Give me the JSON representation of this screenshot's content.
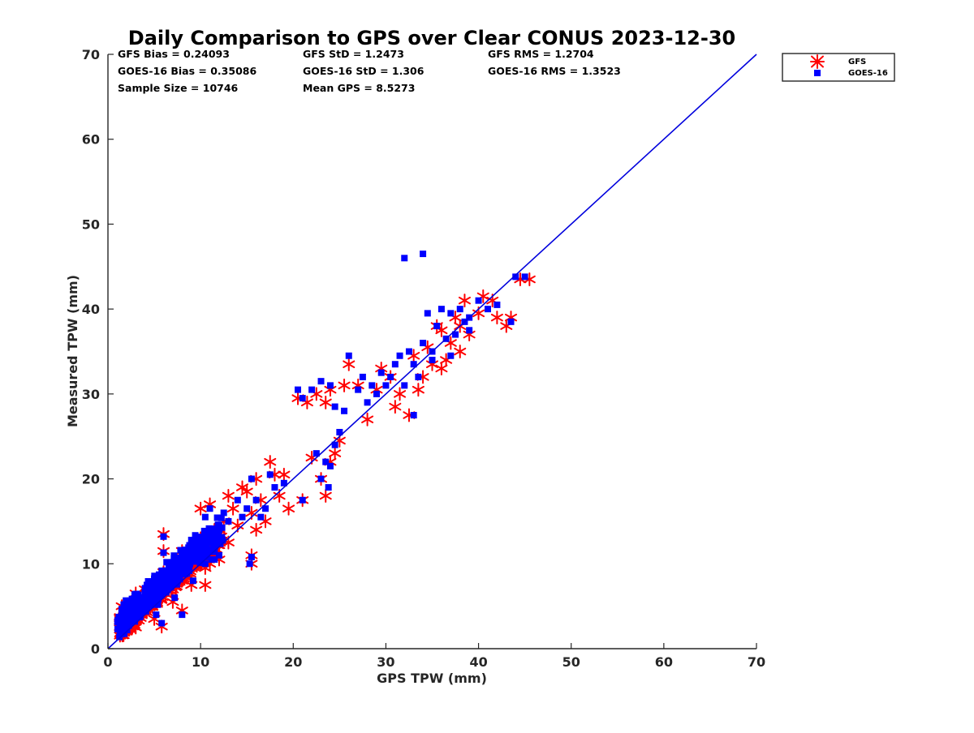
{
  "chart_data": {
    "type": "scatter",
    "title": "Daily Comparison to GPS over Clear CONUS 2023-12-30",
    "xlabel": "GPS TPW (mm)",
    "ylabel": "Measured TPW (mm)",
    "xlim": [
      0,
      70
    ],
    "ylim": [
      0,
      70
    ],
    "xticks": [
      "0",
      "10",
      "20",
      "30",
      "40",
      "50",
      "60",
      "70"
    ],
    "yticks": [
      "0",
      "10",
      "20",
      "30",
      "40",
      "50",
      "60",
      "70"
    ],
    "grid": false,
    "legend": {
      "location": "outside top-right",
      "entries": [
        "GFS",
        "GOES-16"
      ]
    },
    "colors": {
      "GFS": "#ff0000",
      "GOES-16": "#0000ff",
      "reference_line": "#0000dd",
      "axes": "#262626"
    },
    "reference_line": {
      "name": "1:1 line",
      "x": [
        0,
        70
      ],
      "y": [
        0,
        70
      ]
    },
    "stats": {
      "gfs_bias": "GFS Bias = 0.24093",
      "goes_bias": "GOES-16 Bias = 0.35086",
      "sample_size": "Sample Size = 10746",
      "gfs_std": "GFS StD = 1.2473",
      "goes_std": "GOES-16 StD = 1.306",
      "mean_gps": "Mean GPS = 8.5273",
      "gfs_rms": "GFS RMS = 1.2704",
      "goes_rms": "GOES-16 RMS = 1.3523"
    },
    "series": [
      {
        "name": "GFS",
        "marker": "asterisk",
        "points": [
          [
            1.5,
            2.5
          ],
          [
            2,
            3.5
          ],
          [
            2.5,
            3
          ],
          [
            3,
            4.5
          ],
          [
            3.5,
            4
          ],
          [
            4,
            5.5
          ],
          [
            4.5,
            5
          ],
          [
            5,
            6
          ],
          [
            5.5,
            6.5
          ],
          [
            6,
            7
          ],
          [
            6.5,
            7.5
          ],
          [
            7,
            8
          ],
          [
            7.5,
            8.5
          ],
          [
            8,
            9
          ],
          [
            8.5,
            9.5
          ],
          [
            9,
            10
          ],
          [
            9.5,
            10.5
          ],
          [
            10,
            11
          ],
          [
            10.5,
            9.5
          ],
          [
            11,
            12
          ],
          [
            11.5,
            11
          ],
          [
            12,
            10.5
          ],
          [
            1.5,
            5
          ],
          [
            2,
            2
          ],
          [
            3,
            6.5
          ],
          [
            3,
            2.5
          ],
          [
            4,
            7
          ],
          [
            5,
            3.5
          ],
          [
            6,
            9
          ],
          [
            7,
            5.5
          ],
          [
            8,
            11.5
          ],
          [
            9,
            7.5
          ],
          [
            10,
            13
          ],
          [
            10.5,
            7.5
          ],
          [
            11,
            10
          ],
          [
            12,
            12.5
          ],
          [
            6,
            13.5
          ],
          [
            6,
            11.5
          ],
          [
            5.8,
            2.6
          ],
          [
            8,
            4.5
          ],
          [
            10,
            16.5
          ],
          [
            11,
            17
          ],
          [
            11.5,
            14
          ],
          [
            12.5,
            15
          ],
          [
            13,
            18
          ],
          [
            13.5,
            16.5
          ],
          [
            14,
            14.5
          ],
          [
            14.5,
            19
          ],
          [
            15,
            18.5
          ],
          [
            15.5,
            16
          ],
          [
            16,
            14
          ],
          [
            16,
            20
          ],
          [
            16.5,
            17.5
          ],
          [
            17,
            15
          ],
          [
            17.5,
            22
          ],
          [
            18,
            20.5
          ],
          [
            18.5,
            18
          ],
          [
            19,
            20.5
          ],
          [
            19.5,
            16.5
          ],
          [
            15.5,
            11
          ],
          [
            15.5,
            10
          ],
          [
            12,
            14
          ],
          [
            13,
            12.5
          ],
          [
            20.5,
            29.5
          ],
          [
            21.5,
            29
          ],
          [
            22.5,
            30
          ],
          [
            22,
            22.5
          ],
          [
            23,
            20
          ],
          [
            23.5,
            18
          ],
          [
            24,
            22
          ],
          [
            24.5,
            23
          ],
          [
            25,
            24.5
          ],
          [
            21,
            17.5
          ],
          [
            23.5,
            29
          ],
          [
            24,
            30.5
          ],
          [
            25.5,
            31
          ],
          [
            26,
            33.5
          ],
          [
            27,
            31
          ],
          [
            28,
            27
          ],
          [
            29,
            30.5
          ],
          [
            29.5,
            33
          ],
          [
            30.5,
            32
          ],
          [
            31,
            28.5
          ],
          [
            31.5,
            30
          ],
          [
            32.5,
            27.5
          ],
          [
            33,
            34.5
          ],
          [
            33.5,
            30.5
          ],
          [
            34,
            32
          ],
          [
            35,
            33.5
          ],
          [
            34.5,
            35.5
          ],
          [
            36,
            33
          ],
          [
            36,
            37.5
          ],
          [
            37,
            36
          ],
          [
            37.5,
            39
          ],
          [
            38,
            38
          ],
          [
            38.5,
            41
          ],
          [
            39,
            37
          ],
          [
            40,
            39.5
          ],
          [
            40.5,
            41.5
          ],
          [
            41.5,
            41
          ],
          [
            42,
            39
          ],
          [
            43,
            38
          ],
          [
            43.5,
            39
          ],
          [
            44.5,
            43.5
          ],
          [
            45.5,
            43.5
          ],
          [
            35.5,
            38
          ],
          [
            38,
            35
          ],
          [
            36.5,
            34
          ]
        ]
      },
      {
        "name": "GOES-16",
        "marker": "square",
        "points": [
          [
            1.5,
            3
          ],
          [
            2,
            4
          ],
          [
            2.5,
            3.5
          ],
          [
            3,
            5
          ],
          [
            3.5,
            4.5
          ],
          [
            4,
            6
          ],
          [
            4.5,
            5.5
          ],
          [
            5,
            6.5
          ],
          [
            5.5,
            7
          ],
          [
            6,
            7.5
          ],
          [
            6.5,
            8
          ],
          [
            7,
            8.5
          ],
          [
            7.5,
            9
          ],
          [
            8,
            9.5
          ],
          [
            8.5,
            10
          ],
          [
            9,
            10.5
          ],
          [
            9.5,
            11
          ],
          [
            10,
            11.5
          ],
          [
            10.5,
            10
          ],
          [
            11,
            12.5
          ],
          [
            11.5,
            10.5
          ],
          [
            12,
            11
          ],
          [
            1.7,
            5.2
          ],
          [
            2.2,
            2.8
          ],
          [
            3.2,
            6
          ],
          [
            4.2,
            7.5
          ],
          [
            5.2,
            4
          ],
          [
            6.2,
            9.2
          ],
          [
            7.2,
            6
          ],
          [
            8.2,
            11
          ],
          [
            9.2,
            8
          ],
          [
            10.2,
            12.5
          ],
          [
            11.2,
            10.5
          ],
          [
            6,
            13.2
          ],
          [
            6,
            11.3
          ],
          [
            5.8,
            3
          ],
          [
            8,
            4
          ],
          [
            9,
            12.8
          ],
          [
            10.5,
            15.5
          ],
          [
            11,
            16.5
          ],
          [
            12,
            14.5
          ],
          [
            12.5,
            16
          ],
          [
            13,
            15
          ],
          [
            14,
            17.5
          ],
          [
            14.5,
            15.5
          ],
          [
            15,
            16.5
          ],
          [
            15.5,
            20
          ],
          [
            16,
            17.5
          ],
          [
            16.5,
            15.5
          ],
          [
            17,
            16.5
          ],
          [
            17.5,
            20.5
          ],
          [
            18,
            19
          ],
          [
            19,
            19.5
          ],
          [
            15.5,
            10.8
          ],
          [
            15.3,
            10
          ],
          [
            20.5,
            30.5
          ],
          [
            21,
            29.5
          ],
          [
            22,
            30.5
          ],
          [
            22.5,
            23
          ],
          [
            23,
            20
          ],
          [
            23.5,
            22
          ],
          [
            23.8,
            19
          ],
          [
            24,
            21.5
          ],
          [
            24.5,
            24
          ],
          [
            25,
            25.5
          ],
          [
            25.5,
            28
          ],
          [
            21,
            17.5
          ],
          [
            23,
            31.5
          ],
          [
            24,
            31
          ],
          [
            24.5,
            28.5
          ],
          [
            26,
            34.5
          ],
          [
            27,
            30.5
          ],
          [
            27.5,
            32
          ],
          [
            28,
            29
          ],
          [
            28.5,
            31
          ],
          [
            29,
            30
          ],
          [
            29.5,
            32.5
          ],
          [
            30,
            31
          ],
          [
            30.5,
            32
          ],
          [
            31,
            33.5
          ],
          [
            31.5,
            34.5
          ],
          [
            32,
            31
          ],
          [
            32.5,
            35
          ],
          [
            32,
            46
          ],
          [
            34,
            46.5
          ],
          [
            33,
            33.5
          ],
          [
            33.5,
            32
          ],
          [
            34,
            36
          ],
          [
            34.5,
            39.5
          ],
          [
            35,
            35
          ],
          [
            35.5,
            38
          ],
          [
            36,
            40
          ],
          [
            36.5,
            36.5
          ],
          [
            37,
            39.5
          ],
          [
            37.5,
            37
          ],
          [
            38,
            40
          ],
          [
            38.5,
            38.5
          ],
          [
            39,
            39
          ],
          [
            40,
            41
          ],
          [
            41,
            40
          ],
          [
            42,
            40.5
          ],
          [
            43.5,
            38.5
          ],
          [
            44,
            43.8
          ],
          [
            45,
            43.8
          ],
          [
            35,
            34
          ],
          [
            37,
            34.5
          ],
          [
            39,
            37.5
          ],
          [
            33,
            27.5
          ]
        ]
      }
    ]
  }
}
